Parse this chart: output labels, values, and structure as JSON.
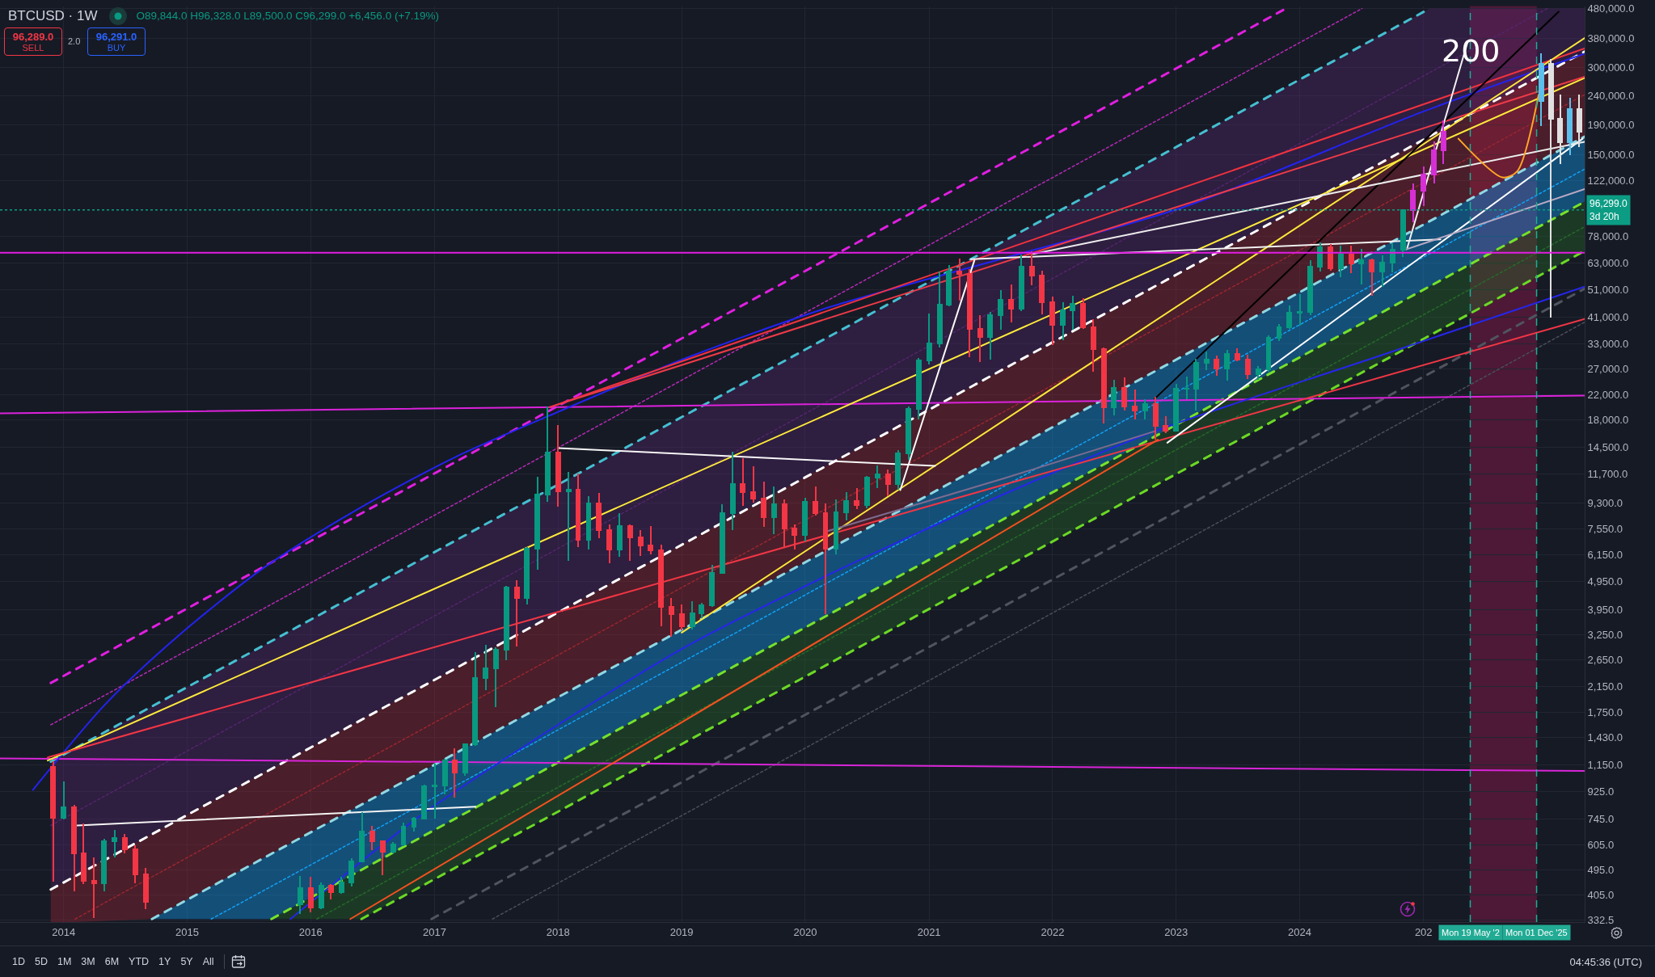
{
  "chart_data": {
    "type": "candlestick",
    "title": "BTCUSD · 1W",
    "subtitle": "O89,844.0 H96,328.0 L89,500.0 C96,299.0 +6,456.0 (+7.19%)",
    "log": true,
    "grid": true,
    "xlim": [
      "2013-06-27",
      "2026-04-22"
    ],
    "ylim": [
      327,
      489000
    ],
    "xticks": [
      "2014",
      "2015",
      "2016",
      "2017",
      "2018",
      "2019",
      "2020",
      "2021",
      "2022",
      "2023",
      "2024",
      {
        "value": "2025",
        "label": "202"
      }
    ],
    "yticks": [
      332.5,
      {
        "value": 405,
        "label": "405.0"
      },
      {
        "value": 495,
        "label": "495.0"
      },
      {
        "value": 605,
        "label": "605.0"
      },
      {
        "value": 745,
        "label": "745.0"
      },
      {
        "value": 925,
        "label": "925.0"
      },
      {
        "value": 1150,
        "label": "1,150.0"
      },
      {
        "value": 1430,
        "label": "1,430.0"
      },
      {
        "value": 1750,
        "label": "1,750.0"
      },
      {
        "value": 2150,
        "label": "2,150.0"
      },
      {
        "value": 2650,
        "label": "2,650.0"
      },
      {
        "value": 3250,
        "label": "3,250.0"
      },
      {
        "value": 3950,
        "label": "3,950.0"
      },
      {
        "value": 4950,
        "label": "4,950.0"
      },
      {
        "value": 6150,
        "label": "6,150.0"
      },
      {
        "value": 7550,
        "label": "7,550.0"
      },
      {
        "value": 9300,
        "label": "9,300.0"
      },
      {
        "value": 11700,
        "label": "11,700.0"
      },
      {
        "value": 14500,
        "label": "14,500.0"
      },
      {
        "value": 18000,
        "label": "18,000.0"
      },
      {
        "value": 22000,
        "label": "22,000.0"
      },
      {
        "value": 27000,
        "label": "27,000.0"
      },
      {
        "value": 33000,
        "label": "33,000.0"
      },
      {
        "value": 41000,
        "label": "41,000.0"
      },
      {
        "value": 51000,
        "label": "51,000.0"
      },
      {
        "value": 63000,
        "label": "63,000.0"
      },
      {
        "value": 78000,
        "label": "78,000.0"
      },
      {
        "value": 122000,
        "label": "122,000.0"
      },
      {
        "value": 150000,
        "label": "150,000.0"
      },
      {
        "value": 190000,
        "label": "190,000.0"
      },
      {
        "value": 240000,
        "label": "240,000.0"
      },
      {
        "value": 300000,
        "label": "300,000.0"
      },
      {
        "value": 380000,
        "label": "380,000.0"
      },
      {
        "value": 480000,
        "label": "480,000.0"
      }
    ],
    "series": [
      {
        "type": "line",
        "line_style": "dotted",
        "color": "#52266a",
        "x": [
          "2013-11-24",
          "2025-01-19",
          "2026-01-01",
          "2026-04-22"
        ],
        "values": [
          707,
          288400,
          480800,
          null
        ],
        "upper": [
          1177,
          480800,
          480800,
          480800
        ],
        "lower": [
          424,
          173100,
          288400,
          341000
        ]
      },
      {
        "type": "line",
        "line_style": "dotted",
        "color": "#982631",
        "x": [
          "2013-11-24",
          "2014-02-04",
          "2014-09-19",
          "2026-04-22"
        ],
        "values": [
          null,
          335,
          469,
          241800
        ],
        "upper": [
          424,
          473,
          661,
          341000
        ],
        "lower": [
          327,
          327,
          335,
          173100
        ]
      },
      {
        "type": "line",
        "line_style": "dotted",
        "color": "#11a1f4",
        "x": [
          "2014-09-19",
          "2015-03-13",
          "2015-09-07",
          "2026-04-22"
        ],
        "values": [
          null,
          335,
          435,
          133500
        ],
        "upper": [
          335,
          435,
          564,
          173100
        ],
        "lower": [
          335,
          335,
          335,
          102900
        ]
      },
      {
        "type": "line",
        "line_style": "dotted",
        "color": "#256a28",
        "x": [
          "2015-09-07",
          "2016-01-19",
          "2016-05-30",
          "2026-04-22"
        ],
        "values": [
          null,
          335,
          407,
          84240
        ],
        "upper": [
          335,
          408,
          497,
          102900
        ],
        "lower": [
          335,
          335,
          335,
          69480
        ]
      },
      {
        "type": "line",
        "color": "#e01fe0",
        "line_style": "dashed",
        "x": [
          "2013-11-24",
          "2023-11-21"
        ],
        "values": [
          2206,
          480800
        ]
      },
      {
        "type": "line",
        "color": "#b52ab5",
        "line_style": "dotted",
        "x": [
          "2013-11-24",
          "2024-07-03"
        ],
        "values": [
          1579,
          480800
        ]
      },
      {
        "type": "line",
        "color": "#45bfd0",
        "line_style": "dashed",
        "x": [
          "2013-11-24",
          "2025-01-19"
        ],
        "values": [
          1177,
          480800
        ]
      },
      {
        "type": "line",
        "color": "#ffffff",
        "line_style": "dashed",
        "x": [
          "2013-11-24",
          "2026-04-22"
        ],
        "values": [
          424,
          341000
        ]
      },
      {
        "type": "line",
        "color": "#8fd8e3",
        "line_style": "dashed",
        "x": [
          "2014-09-19",
          "2026-04-22"
        ],
        "values": [
          335,
          173100
        ]
      },
      {
        "type": "line",
        "color": "#76e22b",
        "line_style": "dashed",
        "x": [
          "2015-09-07",
          "2026-04-22"
        ],
        "values": [
          335,
          102900
        ]
      },
      {
        "type": "line",
        "color": "#6cd925",
        "line_style": "dashed",
        "x": [
          "2016-05-30",
          "2026-04-22"
        ],
        "values": [
          335,
          69480
        ]
      },
      {
        "type": "line",
        "color": "#50545f",
        "line_style": "dashed",
        "x": [
          "2016-12-23",
          "2026-04-22"
        ],
        "values": [
          335,
          51390
        ]
      },
      {
        "type": "line",
        "color": "#4a4e59",
        "line_style": "dotted",
        "x": [
          "2017-06-21",
          "2026-04-22"
        ],
        "values": [
          335,
          39310
        ]
      },
      {
        "type": "line",
        "color": "#dc22dc",
        "x": [
          "2013-06-27",
          "2026-04-22"
        ],
        "values": [
          18980,
          21880
        ]
      },
      {
        "type": "line",
        "color": "#d925d9",
        "x": [
          "2013-06-27",
          "2026-04-22"
        ],
        "values": [
          1207,
          1092
        ]
      },
      {
        "type": "line",
        "color": "#2323f0",
        "x": [
          "2013-10-02",
          "2014-05-05",
          "2014-12-06",
          "2015-08-16",
          "2016-05-15",
          "2017-03-01",
          "2017-12-07",
          "2019-01-16",
          "2020-03-09",
          "2021-08-10",
          "2023-01-25",
          "2025-01-01",
          "2026-04-22"
        ],
        "values": [
          939,
          1866,
          3216,
          5540,
          8782,
          13350,
          18660,
          29580,
          44190,
          65530,
          98740,
          211500,
          335300
        ]
      },
      {
        "type": "line",
        "color": "#2626ea",
        "x": [
          "2015-11-02",
          "2016-11-27",
          "2017-12-07",
          "2019-01-16",
          "2020-03-09",
          "2021-08-10",
          "2022-10-30",
          "2024-08-07",
          "2026-04-22"
        ],
        "values": [
          335,
          775,
          1514,
          2957,
          5226,
          9958,
          16460,
          29580,
          52260
        ]
      },
      {
        "type": "line",
        "color": "#ffeb3b",
        "x": [
          "2013-11-15",
          "2026-04-22"
        ],
        "values": [
          1187,
          276600
        ]
      },
      {
        "type": "line",
        "color": "#f23645",
        "x": [
          "2013-11-15",
          "2026-04-22"
        ],
        "values": [
          1217,
          40310
        ]
      },
      {
        "type": "line",
        "color": "#f0323f",
        "x": [
          "2017-12-07",
          "2026-04-22"
        ],
        "values": [
          19950,
          349700
        ]
      },
      {
        "type": "line",
        "color": "#ee3a48",
        "x": [
          "2017-12-07",
          "2026-04-22"
        ],
        "values": [
          19950,
          278900
        ]
      },
      {
        "type": "line",
        "color": "#fce83a",
        "x": [
          "2019-01-01",
          "2026-04-22"
        ],
        "values": [
          3298,
          380200
        ]
      },
      {
        "type": "line",
        "color": "#000000",
        "x": [
          "2022-10-30",
          "2026-02-04"
        ],
        "values": [
          21340,
          468800
        ]
      },
      {
        "type": "line",
        "color": "#fefefe",
        "x": [
          "2022-12-06",
          "2026-04-16"
        ],
        "values": [
          15010,
          170200
        ]
      },
      {
        "type": "line",
        "color": "#f7f7f7",
        "x": [
          "2018-01-01",
          "2021-01-19"
        ],
        "values": [
          14390,
          12480
        ]
      },
      {
        "type": "line",
        "color": "#f4f4f4",
        "x": [
          "2014-02-10",
          "2017-05-02"
        ],
        "values": [
          707,
          821
        ]
      },
      {
        "type": "line",
        "color": "#f0f0f0",
        "x": [
          "2021-05-05",
          "2025-02-20"
        ],
        "values": [
          64970,
          76170
        ]
      },
      {
        "type": "line",
        "color": "#ececec",
        "x": [
          "2021-11-05",
          "2026-04-22"
        ],
        "values": [
          67750,
          166000
        ]
      },
      {
        "type": "line",
        "color": "#fafafa",
        "x": [
          "2020-10-08",
          "2021-05-15"
        ],
        "values": [
          10290,
          64430
        ]
      },
      {
        "type": "line",
        "color": "#f2f2f2",
        "x": [
          "2024-11-14",
          "2025-05-11"
        ],
        "values": [
          71240,
          367700
        ]
      },
      {
        "type": "line",
        "color": "#b9aac4",
        "x": [
          "2024-11-07",
          "2026-04-22"
        ],
        "values": [
          70050,
          113900
        ]
      },
      {
        "type": "line",
        "color": "#f4511e",
        "x": [
          "2016-04-27",
          "2022-11-08"
        ],
        "values": [
          335,
          15390
        ]
      },
      {
        "type": "line",
        "color": "#7d6b8f",
        "x": [
          "2020-03-09",
          "2021-08-10",
          "2022-10-30"
        ],
        "values": [
          7428,
          11290,
          16460
        ]
      },
      {
        "type": "line",
        "color": "#ffa726",
        "x": [
          "2025-04-14",
          "2025-08-22",
          "2025-10-05",
          "2025-12-07"
        ],
        "values": [
          170200,
          124900,
          131300,
          241800
        ]
      },
      {
        "x": [
          "2013-12",
          "2014-01",
          "2014-02",
          "2014-03",
          "2014-04",
          "2014-05",
          "2014-06",
          "2014-07",
          "2014-08",
          "2014-09",
          "2015-12",
          "2016-01",
          "2016-02",
          "2016-03",
          "2016-04",
          "2016-05",
          "2016-06",
          "2016-07",
          "2016-08",
          "2016-09",
          "2016-10",
          "2016-11",
          "2016-12",
          "2017-01",
          "2017-02",
          "2017-03",
          "2017-04",
          "2017-05",
          "2017-06",
          "2017-07",
          "2017-08",
          "2017-09",
          "2017-10",
          "2017-11",
          "2017-12",
          "2018-01",
          "2018-02",
          "2018-03",
          "2018-04",
          "2018-05",
          "2018-06",
          "2018-07",
          "2018-08",
          "2018-09",
          "2018-10",
          "2018-11",
          "2018-12",
          "2019-01",
          "2019-02",
          "2019-03",
          "2019-04",
          "2019-05",
          "2019-06",
          "2019-07",
          "2019-08",
          "2019-09",
          "2019-10",
          "2019-11",
          "2019-12",
          "2020-01",
          "2020-02",
          "2020-03",
          "2020-04",
          "2020-05",
          "2020-06",
          "2020-07",
          "2020-08",
          "2020-09",
          "2020-10",
          "2020-11",
          "2020-12",
          "2021-01",
          "2021-02",
          "2021-03",
          "2021-04",
          "2021-05",
          "2021-06",
          "2021-07",
          "2021-08",
          "2021-09",
          "2021-10",
          "2021-11",
          "2021-12",
          "2022-01",
          "2022-02",
          "2022-03",
          "2022-04",
          "2022-05",
          "2022-06",
          "2022-07",
          "2022-08",
          "2022-09",
          "2022-10",
          "2022-11",
          "2022-12",
          "2023-01",
          "2023-02",
          "2023-03",
          "2023-04",
          "2023-05",
          "2023-06",
          "2023-07",
          "2023-08",
          "2023-09",
          "2023-10",
          "2023-11",
          "2023-12",
          "2024-01",
          "2024-02",
          "2024-03",
          "2024-04",
          "2024-05",
          "2024-06",
          "2024-07",
          "2024-08",
          "2024-09",
          "2024-10",
          "2024-11"
        ],
        "ohlc": [
          [
            1130,
            1175,
            455,
            750
          ],
          [
            750,
            1000,
            745,
            815
          ],
          [
            815,
            830,
            420,
            565
          ],
          [
            565,
            715,
            445,
            455
          ],
          [
            455,
            545,
            340,
            445
          ],
          [
            445,
            630,
            420,
            625
          ],
          [
            625,
            680,
            550,
            640
          ],
          [
            640,
            655,
            570,
            585
          ],
          [
            585,
            600,
            450,
            480
          ],
          [
            480,
            500,
            365,
            385
          ],
          [
            378,
            470,
            350,
            430
          ],
          [
            430,
            465,
            355,
            368
          ],
          [
            368,
            445,
            365,
            437
          ],
          [
            437,
            440,
            395,
            415
          ],
          [
            415,
            465,
            413,
            450
          ],
          [
            450,
            540,
            436,
            530
          ],
          [
            530,
            780,
            530,
            675
          ],
          [
            675,
            700,
            585,
            625
          ],
          [
            625,
            625,
            480,
            575
          ],
          [
            575,
            615,
            570,
            608
          ],
          [
            608,
            720,
            605,
            700
          ],
          [
            700,
            750,
            680,
            745
          ],
          [
            745,
            975,
            745,
            965
          ],
          [
            965,
            1150,
            750,
            970
          ],
          [
            970,
            1200,
            910,
            1190
          ],
          [
            1190,
            1300,
            890,
            1080
          ],
          [
            1080,
            1350,
            1060,
            1350
          ],
          [
            1350,
            2800,
            1340,
            2300
          ],
          [
            2300,
            2980,
            2100,
            2480
          ],
          [
            2480,
            2920,
            1830,
            2870
          ],
          [
            2870,
            4750,
            2670,
            4740
          ],
          [
            4740,
            4975,
            2970,
            4335
          ],
          [
            4335,
            6470,
            4160,
            6460
          ],
          [
            6460,
            11400,
            5500,
            9950
          ],
          [
            9950,
            19890,
            9400,
            13880
          ],
          [
            13880,
            17200,
            9050,
            10200
          ],
          [
            10200,
            11780,
            5900,
            10330
          ],
          [
            10330,
            11700,
            6580,
            6930
          ],
          [
            6930,
            9760,
            6430,
            9240
          ],
          [
            9240,
            9990,
            7060,
            7490
          ],
          [
            7490,
            7760,
            5760,
            6400
          ],
          [
            6400,
            8500,
            6070,
            7730
          ],
          [
            7730,
            7770,
            5880,
            7030
          ],
          [
            7030,
            7410,
            6100,
            6630
          ],
          [
            6630,
            7680,
            6200,
            6370
          ],
          [
            6370,
            6600,
            3500,
            4040
          ],
          [
            4040,
            4320,
            3210,
            3830
          ],
          [
            3830,
            4090,
            3390,
            3460
          ],
          [
            3460,
            4210,
            3400,
            3840
          ],
          [
            3840,
            4150,
            3730,
            4100
          ],
          [
            4100,
            5630,
            4070,
            5320
          ],
          [
            5320,
            9100,
            5320,
            8570
          ],
          [
            8570,
            13900,
            7500,
            10800
          ],
          [
            10800,
            13200,
            9100,
            10100
          ],
          [
            10100,
            12330,
            9350,
            9600
          ],
          [
            9600,
            10950,
            7720,
            8300
          ],
          [
            8300,
            10540,
            7300,
            9160
          ],
          [
            9160,
            9500,
            6520,
            7560
          ],
          [
            7560,
            7780,
            6430,
            7200
          ],
          [
            7200,
            9590,
            6870,
            9350
          ],
          [
            9350,
            10500,
            8450,
            8540
          ],
          [
            8540,
            9190,
            3850,
            6430
          ],
          [
            6430,
            9470,
            6200,
            8630
          ],
          [
            8630,
            10070,
            8120,
            9450
          ],
          [
            9450,
            10400,
            8900,
            9140
          ],
          [
            9140,
            11450,
            8980,
            11350
          ],
          [
            11350,
            12480,
            10550,
            11650
          ],
          [
            11650,
            12080,
            9850,
            10780
          ],
          [
            10780,
            14100,
            10400,
            13800
          ],
          [
            13800,
            19900,
            13200,
            19700
          ],
          [
            19700,
            29300,
            18200,
            28990
          ],
          [
            28990,
            41950,
            28150,
            33100
          ],
          [
            33100,
            58350,
            32300,
            45200
          ],
          [
            45200,
            61800,
            44900,
            58800
          ],
          [
            58800,
            64900,
            47000,
            57700
          ],
          [
            57700,
            59500,
            30000,
            37300
          ],
          [
            37300,
            41300,
            28800,
            35000
          ],
          [
            35000,
            42300,
            29300,
            41500
          ],
          [
            41500,
            50500,
            37300,
            47100
          ],
          [
            47100,
            52900,
            39600,
            43800
          ],
          [
            43800,
            67000,
            43300,
            61300
          ],
          [
            61300,
            69000,
            53300,
            57000
          ],
          [
            57000,
            59100,
            42000,
            46200
          ],
          [
            46200,
            47900,
            32950,
            38500
          ],
          [
            38500,
            45800,
            34300,
            43200
          ],
          [
            43200,
            48200,
            37200,
            45500
          ],
          [
            45500,
            47400,
            37600,
            37700
          ],
          [
            37700,
            40000,
            26700,
            31800
          ],
          [
            31800,
            31950,
            17600,
            19950
          ],
          [
            19950,
            24650,
            18800,
            23300
          ],
          [
            23300,
            25200,
            19600,
            20050
          ],
          [
            20050,
            22800,
            18200,
            19400
          ],
          [
            19400,
            21100,
            18200,
            20500
          ],
          [
            20500,
            21480,
            15500,
            17170
          ],
          [
            17170,
            18400,
            16300,
            16550
          ],
          [
            16550,
            23950,
            16500,
            23130
          ],
          [
            23130,
            25250,
            21400,
            23150
          ],
          [
            23150,
            29200,
            19600,
            28480
          ],
          [
            28480,
            31000,
            26950,
            29250
          ],
          [
            29250,
            29850,
            25850,
            27220
          ],
          [
            27220,
            31400,
            24800,
            30480
          ],
          [
            30480,
            31800,
            28900,
            29230
          ],
          [
            29230,
            30200,
            25100,
            25940
          ],
          [
            25940,
            27500,
            24900,
            26970
          ],
          [
            26970,
            35200,
            26600,
            34650
          ],
          [
            34650,
            38450,
            34100,
            37720
          ],
          [
            37720,
            44700,
            37600,
            42270
          ],
          [
            42270,
            48950,
            38500,
            42580
          ],
          [
            42580,
            64000,
            41900,
            61170
          ],
          [
            61170,
            73800,
            59300,
            71300
          ],
          [
            71300,
            72800,
            59600,
            60650
          ],
          [
            60650,
            71950,
            56500,
            67500
          ],
          [
            67500,
            71950,
            58400,
            62700
          ],
          [
            62700,
            70000,
            53500,
            64600
          ],
          [
            64600,
            65100,
            49000,
            58970
          ],
          [
            58970,
            66500,
            52600,
            63300
          ],
          [
            63300,
            73600,
            58900,
            70200
          ],
          [
            70200,
            96328,
            66800,
            96299
          ]
        ],
        "colors": [
          "#f23645",
          "#089981",
          "#f23645",
          "#f23645",
          "#f23645",
          "#089981",
          "#089981",
          "#f23645",
          "#f23645",
          "#f23645",
          "#089981",
          "#f23645",
          "#089981",
          "#f23645",
          "#089981",
          "#089981",
          "#089981",
          "#f23645",
          "#f23645",
          "#089981",
          "#089981",
          "#089981",
          "#089981",
          "#089981",
          "#089981",
          "#f23645",
          "#089981",
          "#089981",
          "#089981",
          "#089981",
          "#089981",
          "#f23645",
          "#089981",
          "#089981",
          "#089981",
          "#f23645",
          "#089981",
          "#f23645",
          "#089981",
          "#f23645",
          "#f23645",
          "#089981",
          "#f23645",
          "#f23645",
          "#f23645",
          "#f23645",
          "#f23645",
          "#f23645",
          "#089981",
          "#089981",
          "#089981",
          "#089981",
          "#089981",
          "#f23645",
          "#f23645",
          "#f23645",
          "#089981",
          "#f23645",
          "#f23645",
          "#089981",
          "#f23645",
          "#f23645",
          "#089981",
          "#089981",
          "#f23645",
          "#089981",
          "#089981",
          "#f23645",
          "#089981",
          "#089981",
          "#089981",
          "#089981",
          "#089981",
          "#089981",
          "#f23645",
          "#f23645",
          "#f23645",
          "#089981",
          "#089981",
          "#f23645",
          "#089981",
          "#f23645",
          "#f23645",
          "#f23645",
          "#089981",
          "#089981",
          "#f23645",
          "#f23645",
          "#f23645",
          "#089981",
          "#f23645",
          "#f23645",
          "#089981",
          "#f23645",
          "#f23645",
          "#089981",
          "#089981",
          "#089981",
          "#089981",
          "#f23645",
          "#089981",
          "#f23645",
          "#f23645",
          "#089981",
          "#089981",
          "#089981",
          "#089981",
          "#089981",
          "#089981",
          "#089981",
          "#f23645",
          "#089981",
          "#f23645",
          "#089981",
          "#f23645",
          "#089981",
          "#089981",
          "#089981"
        ]
      },
      {
        "x": [
          "2024-12",
          "2025-01",
          "2025-02",
          "2025-03"
        ],
        "ohlc": [
          [
            96299,
            118000,
            88000,
            112000
          ],
          [
            112000,
            135000,
            100000,
            128000
          ],
          [
            128000,
            165000,
            120000,
            155000
          ],
          [
            155000,
            195000,
            140000,
            180000
          ]
        ],
        "colors": [
          "#d62fd6",
          "#d62fd6",
          "#d62fd6",
          "#d62fd6"
        ]
      },
      {
        "x": [
          "2025-12-15",
          "2026-01-12",
          "2026-02-09",
          "2026-03-09",
          "2026-04-06"
        ],
        "ohlc": [
          [
            230000,
            335000,
            190000,
            310000
          ],
          [
            310000,
            320000,
            41000,
            200000
          ],
          [
            200000,
            240000,
            140000,
            165000
          ],
          [
            165000,
            235000,
            150000,
            215000
          ],
          [
            215000,
            240000,
            160000,
            180000
          ]
        ],
        "colors": [
          "#5bc0eb",
          "#e0e0e0",
          "#e0e0e0",
          "#5bc0eb",
          "#e0e0e0"
        ]
      }
    ],
    "ref_lines": [
      {
        "axis": "y",
        "value": 68500,
        "color": "#e31de3"
      },
      {
        "axis": "y",
        "value": 96299,
        "label": "96,299.0\n3d 20h",
        "color": "#0c9c84",
        "line_style": "dotted"
      },
      {
        "axis": "x",
        "value": "2025-05-19",
        "label": "Mon 19 May '2",
        "color": "#22ab94",
        "line_style": "dashed"
      },
      {
        "axis": "x",
        "value": "2025-12-01",
        "label": "Mon 01 Dec '25",
        "color": "#22ab94",
        "line_style": "dashed"
      }
    ],
    "bands": [
      {
        "axis": "x",
        "from": "2025-05-19",
        "to": "2025-12-01",
        "color": "#c2185b"
      }
    ],
    "annotations": [
      "96,289.0",
      "SELL",
      "2.0",
      "96,291.0",
      "BUY",
      "1D",
      "5D",
      "1M",
      "3M",
      "6M",
      "YTD",
      "1Y",
      "5Y",
      "All",
      "04:45:36 (UTC)",
      {
        "text": "200",
        "x": "2025-05-21",
        "y": 344000
      }
    ]
  }
}
